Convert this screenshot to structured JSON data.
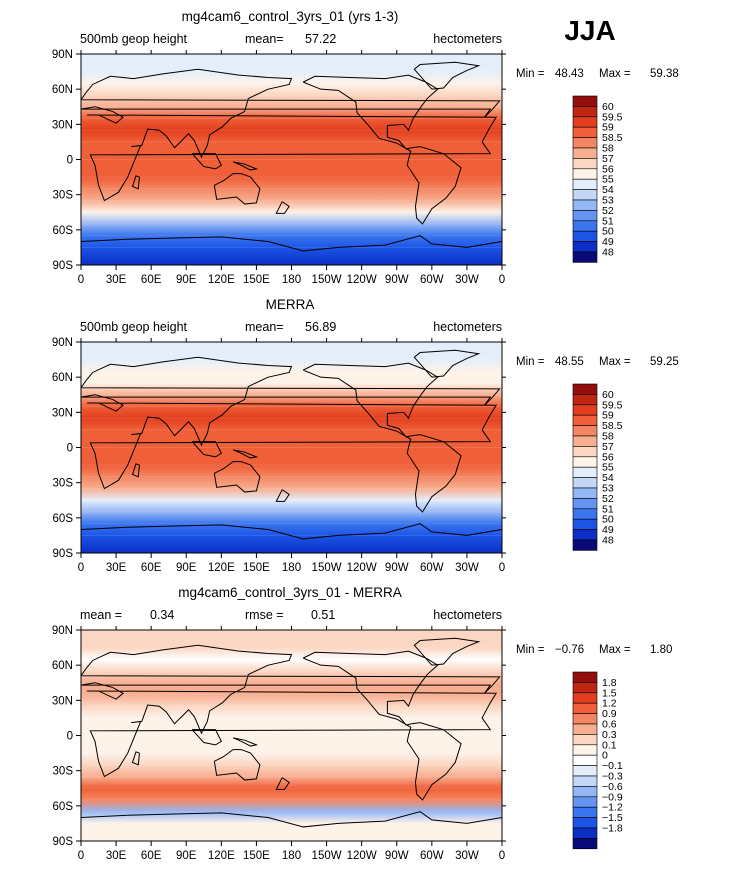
{
  "season": "JJA",
  "colors": {
    "model_levels": [
      "#0a0a7a",
      "#0b2fc4",
      "#1c55e6",
      "#3a74ee",
      "#6595f2",
      "#95b6f5",
      "#c3d7f7",
      "#e4eefb",
      "#fdf3e9",
      "#fbd6c3",
      "#f8ae91",
      "#f48762",
      "#ef5f38",
      "#e23e1e",
      "#c02614",
      "#930f0e"
    ],
    "diff_levels": [
      "#0a0a7a",
      "#0b2fc4",
      "#1c55e6",
      "#3a74ee",
      "#6595f2",
      "#95b6f5",
      "#c3d7f7",
      "#e4eefb",
      "#ffffff",
      "#fdf3e9",
      "#fbd6c3",
      "#f8ae91",
      "#f48762",
      "#ef5f38",
      "#e23e1e",
      "#c02614",
      "#930f0e"
    ]
  },
  "chart_data": [
    {
      "type": "heatmap",
      "title": "mg4cam6_control_3yrs_01 (yrs 1-3)",
      "left_label": "500mb geop height",
      "mean_label": "mean=",
      "mean_value": "57.22",
      "units": "hectometers",
      "min_label": "Min =",
      "min_value": "48.43",
      "max_label": "Max =",
      "max_value": "59.38",
      "x_ticks": [
        "0",
        "30E",
        "60E",
        "90E",
        "120E",
        "150E",
        "180",
        "150W",
        "120W",
        "90W",
        "60W",
        "30W",
        "0"
      ],
      "y_ticks": [
        "90N",
        "60N",
        "30N",
        "0",
        "30S",
        "60S",
        "90S"
      ],
      "colorbar_labels": [
        "60",
        "59.5",
        "59",
        "58.5",
        "58",
        "57",
        "56",
        "55",
        "54",
        "53",
        "52",
        "51",
        "50",
        "49",
        "48"
      ],
      "profile_lat": [
        -90,
        -75,
        -65,
        -55,
        -45,
        -35,
        -25,
        -15,
        0,
        15,
        25,
        35,
        45,
        55,
        65,
        75,
        90
      ],
      "profile_value": [
        48.43,
        49.0,
        50.5,
        52.5,
        55.0,
        57.2,
        58.4,
        58.7,
        58.8,
        58.9,
        59.2,
        58.8,
        57.6,
        56.0,
        55.0,
        54.2,
        54.0
      ]
    },
    {
      "type": "heatmap",
      "title": "MERRA",
      "left_label": "500mb geop height",
      "mean_label": "mean=",
      "mean_value": "56.89",
      "units": "hectometers",
      "min_label": "Min =",
      "min_value": "48.55",
      "max_label": "Max =",
      "max_value": "59.25",
      "x_ticks": [
        "0",
        "30E",
        "60E",
        "90E",
        "120E",
        "150E",
        "180",
        "150W",
        "120W",
        "90W",
        "60W",
        "30W",
        "0"
      ],
      "y_ticks": [
        "90N",
        "60N",
        "30N",
        "0",
        "30S",
        "60S",
        "90S"
      ],
      "colorbar_labels": [
        "60",
        "59.5",
        "59",
        "58.5",
        "58",
        "57",
        "56",
        "55",
        "54",
        "53",
        "52",
        "51",
        "50",
        "49",
        "48"
      ],
      "profile_lat": [
        -90,
        -75,
        -65,
        -55,
        -45,
        -35,
        -25,
        -15,
        0,
        15,
        25,
        35,
        45,
        55,
        65,
        75,
        90
      ],
      "profile_value": [
        48.55,
        49.0,
        50.5,
        52.3,
        54.7,
        57.0,
        58.3,
        58.6,
        58.7,
        58.8,
        59.1,
        58.7,
        57.5,
        55.9,
        55.0,
        54.3,
        54.1
      ]
    },
    {
      "type": "heatmap",
      "title": "mg4cam6_control_3yrs_01 - MERRA",
      "left_label": "mean =",
      "mean_label": "rmse =",
      "mean_value_left": "0.34",
      "mean_value": "0.51",
      "units": "hectometers",
      "min_label": "Min =",
      "min_value": "−0.76",
      "max_label": "Max =",
      "max_value": "1.80",
      "x_ticks": [
        "0",
        "30E",
        "60E",
        "90E",
        "120E",
        "150E",
        "180",
        "150W",
        "120W",
        "90W",
        "60W",
        "30W",
        "0"
      ],
      "y_ticks": [
        "90N",
        "60N",
        "30N",
        "0",
        "30S",
        "60S",
        "90S"
      ],
      "colorbar_labels": [
        "1.8",
        "1.5",
        "1.2",
        "0.9",
        "0.6",
        "0.3",
        "0.1",
        "0",
        "−0.1",
        "−0.3",
        "−0.6",
        "−0.9",
        "−1.2",
        "−1.5",
        "−1.8"
      ],
      "profile_lat": [
        -90,
        -75,
        -65,
        -55,
        -45,
        -35,
        -25,
        -15,
        0,
        15,
        25,
        35,
        45,
        55,
        65,
        75,
        90
      ],
      "profile_value": [
        0.2,
        0.1,
        -0.6,
        0.9,
        1.2,
        0.6,
        0.3,
        0.2,
        0.1,
        0.1,
        0.3,
        0.6,
        0.6,
        0.3,
        0.0,
        0.3,
        0.3
      ]
    }
  ]
}
